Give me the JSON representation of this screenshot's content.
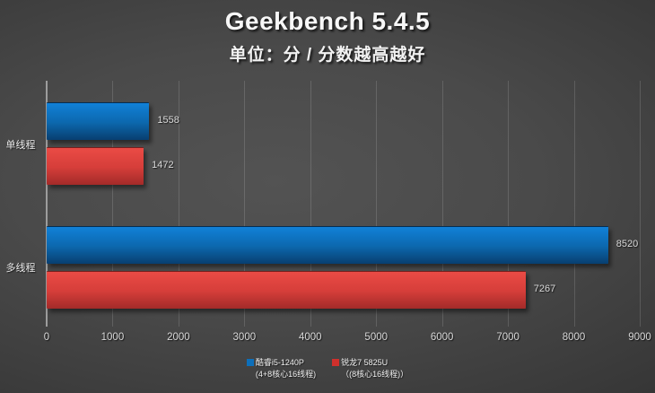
{
  "chart_data": {
    "type": "bar",
    "orientation": "horizontal",
    "title": "Geekbench 5.4.5",
    "subtitle": "单位：分 / 分数越高越好",
    "categories": [
      "单线程",
      "多线程"
    ],
    "series": [
      {
        "name": "酷睿i5-1240P",
        "detail": "(4+8核心16线程)",
        "values": [
          1558,
          8520
        ],
        "color": "#0d6fba",
        "gradient": [
          "#1181d8",
          "#0c68ae",
          "#083f70"
        ]
      },
      {
        "name": "锐龙7 5825U",
        "detail": "（(8核心16线程)）",
        "values": [
          1472,
          7267
        ],
        "color": "#cf302c",
        "gradient": [
          "#ea4b45",
          "#d63e3a",
          "#a32b29"
        ]
      }
    ],
    "xlim": [
      0,
      9000
    ],
    "xticks": [
      0,
      1000,
      2000,
      3000,
      4000,
      5000,
      6000,
      7000,
      8000,
      9000
    ],
    "grid": "vertical",
    "legend_position": "bottom",
    "colors": {
      "background_center": "#535353",
      "background_edge": "#2a2a2a",
      "gridline": "rgba(255,255,255,0.14)",
      "axis_line": "#9d9d9d",
      "text": "#ececec"
    }
  }
}
